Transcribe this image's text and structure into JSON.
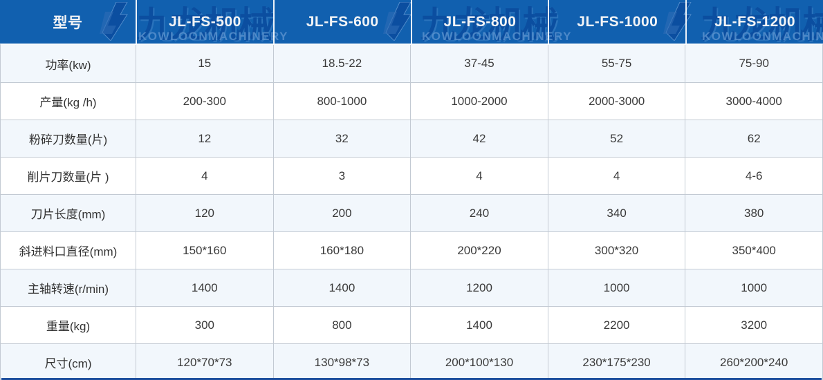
{
  "table": {
    "header": [
      "型号",
      "JL-FS-500",
      "JL-FS-600",
      "JL-FS-800",
      "JL-FS-1000",
      "JL-FS-1200"
    ],
    "rows": [
      {
        "label": "功率(kw)",
        "values": [
          "15",
          "18.5-22",
          "37-45",
          "55-75",
          "75-90"
        ]
      },
      {
        "label": "产量(kg /h)",
        "values": [
          "200-300",
          "800-1000",
          "1000-2000",
          "2000-3000",
          "3000-4000"
        ]
      },
      {
        "label": "粉碎刀数量(片)",
        "values": [
          "12",
          "32",
          "42",
          "52",
          "62"
        ]
      },
      {
        "label": "削片刀数量(片 )",
        "values": [
          "4",
          "3",
          "4",
          "4",
          "4-6"
        ]
      },
      {
        "label": "刀片长度(mm)",
        "values": [
          "120",
          "200",
          "240",
          "340",
          "380"
        ]
      },
      {
        "label": "斜进料口直径(mm)",
        "values": [
          "150*160",
          "160*180",
          "200*220",
          "300*320",
          "350*400"
        ]
      },
      {
        "label": "主轴转速(r/min)",
        "values": [
          "1400",
          "1400",
          "1200",
          "1000",
          "1000"
        ]
      },
      {
        "label": "重量(kg)",
        "values": [
          "300",
          "800",
          "1400",
          "2200",
          "3200"
        ]
      },
      {
        "label": "尺寸(cm)",
        "values": [
          "120*70*73",
          "130*98*73",
          "200*100*130",
          "230*175*230",
          "260*200*240"
        ]
      }
    ]
  },
  "watermark": {
    "brand_cn": "九龙机械",
    "brand_en": "KOWLOONMACHINERY"
  },
  "colors": {
    "header_bg": "#1160af",
    "header_text": "#f3f4f6",
    "row_alt_bg": "#f2f7fc",
    "grid_line": "#c3cad3",
    "bottom_bar": "#1e4f9e",
    "watermark_cn": "#0b4c9e",
    "watermark_en": "#5b93cf"
  }
}
